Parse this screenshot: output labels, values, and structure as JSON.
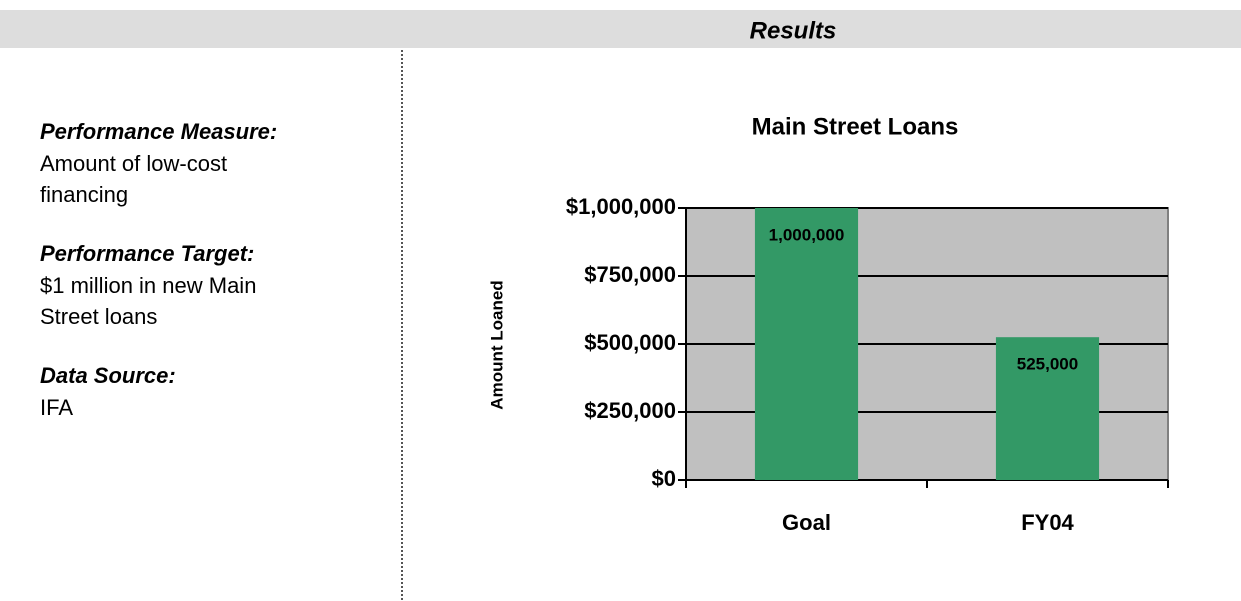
{
  "header": {
    "title": "Results"
  },
  "sections": [
    {
      "label": "Performance Measure:",
      "lines": [
        "Amount of low-cost",
        "financing"
      ]
    },
    {
      "label": "Performance Target:",
      "lines": [
        "$1 million in new Main",
        "Street loans"
      ]
    },
    {
      "label": "Data Source:",
      "lines": [
        "IFA"
      ]
    }
  ],
  "chart_data": {
    "type": "bar",
    "title": "Main Street Loans",
    "y_label": "Amount Loaned",
    "categories": [
      "Goal",
      "FY04"
    ],
    "values": [
      1000000,
      525000
    ],
    "value_labels": [
      "1,000,000",
      "525,000"
    ],
    "color": "#339966",
    "background": "#c0c0c0",
    "grid": true,
    "ylim": [
      0,
      1000000
    ],
    "yticks": [
      {
        "value": 0,
        "label": "$0"
      },
      {
        "value": 250000,
        "label": "$250,000"
      },
      {
        "value": 500000,
        "label": "$500,000"
      },
      {
        "value": 750000,
        "label": "$750,000"
      },
      {
        "value": 1000000,
        "label": "$1,000,000"
      }
    ]
  }
}
